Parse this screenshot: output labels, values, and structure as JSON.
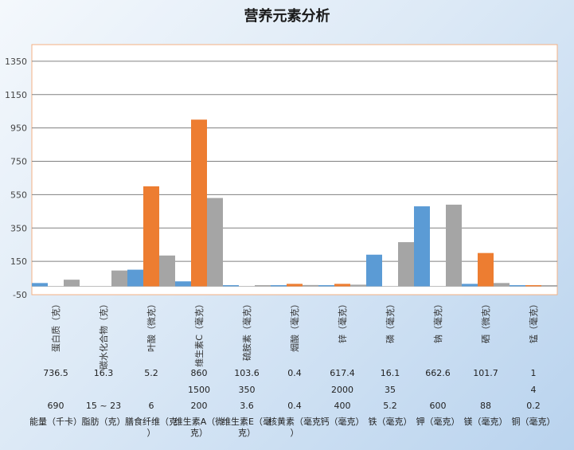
{
  "chart_data": {
    "type": "bar",
    "title": "营养元素分析",
    "ylim": [
      -50,
      1450
    ],
    "yticks": [
      -50,
      150,
      350,
      550,
      750,
      950,
      1150,
      1350
    ],
    "grid": true,
    "categories": [
      "蛋白质（克）",
      "碳水化合物（克）",
      "叶酸（微克）",
      "维生素C（毫克）",
      "硫胺素（毫克）",
      "烟酸（毫克）",
      "锌（毫克）",
      "磷（毫克）",
      "钠（毫克）",
      "硒（微克）",
      "锰（毫克）"
    ],
    "series": [
      {
        "color": "#5b9bd5",
        "values": [
          20,
          0,
          100,
          30,
          2,
          7,
          5,
          190,
          480,
          15,
          5
        ]
      },
      {
        "color": "#ed7d31",
        "values": [
          0,
          0,
          600,
          1000,
          0,
          15,
          15,
          0,
          0,
          200,
          2
        ]
      },
      {
        "color": "#a5a5a5",
        "values": [
          40,
          95,
          185,
          530,
          2,
          8,
          10,
          265,
          490,
          20,
          3
        ]
      }
    ],
    "table": {
      "row1": [
        "736.5",
        "16.3",
        "5.2",
        "860",
        "103.6",
        "0.4",
        "617.4",
        "16.1",
        "662.6",
        "101.7",
        "1"
      ],
      "row2": [
        "",
        "",
        "",
        "1500",
        "350",
        "",
        "2000",
        "35",
        "",
        "",
        "4"
      ],
      "row3": [
        "690",
        "15 ~ 23",
        "6",
        "200",
        "3.6",
        "0.4",
        "400",
        "5.2",
        "600",
        "88",
        "0.2"
      ],
      "row4": [
        "能量（千卡）",
        "脂肪（克）",
        "膳食纤维（克）",
        "维生素A（微克）",
        "维生素E（毫克）",
        "核黄素（毫克）",
        "钙（毫克）",
        "铁（毫克）",
        "钾（毫克）",
        "镁（毫克）",
        "铜（毫克）"
      ]
    }
  }
}
